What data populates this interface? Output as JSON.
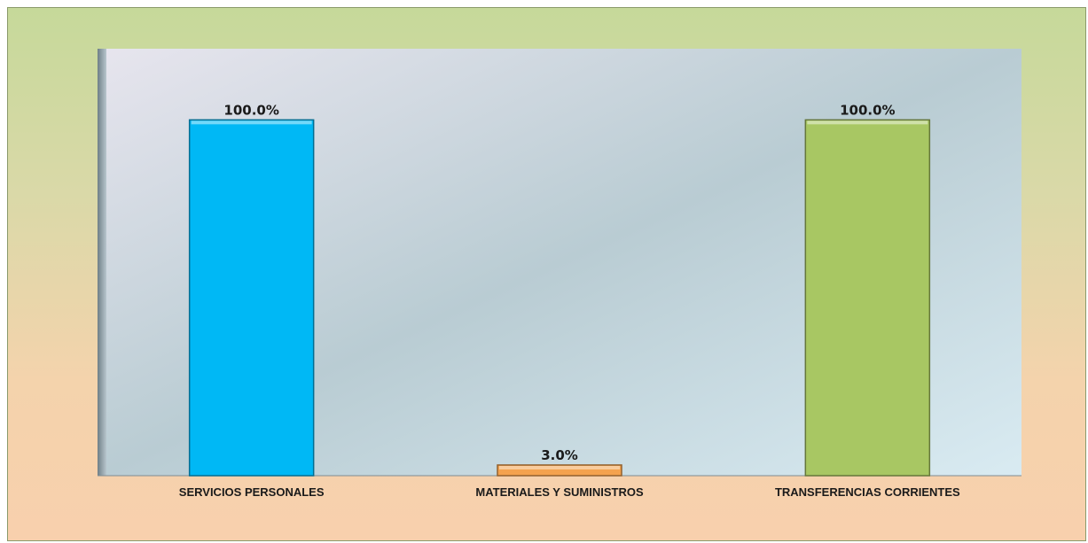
{
  "chart_data": {
    "type": "bar",
    "categories": [
      "SERVICIOS PERSONALES",
      "MATERIALES Y SUMINISTROS",
      "TRANSFERENCIAS CORRIENTES"
    ],
    "values": [
      100.0,
      3.0,
      100.0
    ],
    "value_labels": [
      "100.0%",
      "3.0%",
      "100.0%"
    ],
    "bar_colors": [
      "#00b8f5",
      "#f4a24e",
      "#a8c763"
    ],
    "ylim": [
      0,
      120
    ],
    "title": "",
    "xlabel": "",
    "ylabel": "",
    "grid": false,
    "legend": "none"
  }
}
